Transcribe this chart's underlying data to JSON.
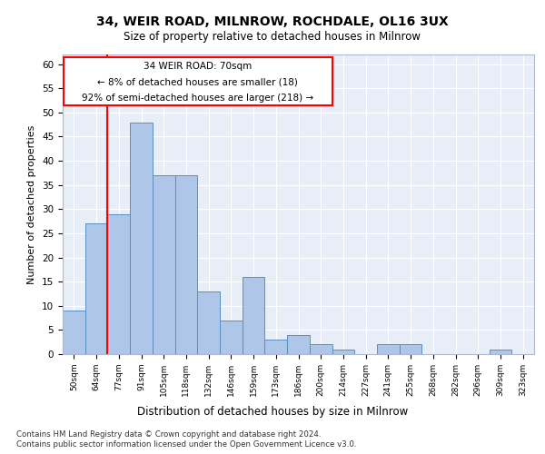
{
  "title1": "34, WEIR ROAD, MILNROW, ROCHDALE, OL16 3UX",
  "title2": "Size of property relative to detached houses in Milnrow",
  "xlabel": "Distribution of detached houses by size in Milnrow",
  "ylabel": "Number of detached properties",
  "categories": [
    "50sqm",
    "64sqm",
    "77sqm",
    "91sqm",
    "105sqm",
    "118sqm",
    "132sqm",
    "146sqm",
    "159sqm",
    "173sqm",
    "186sqm",
    "200sqm",
    "214sqm",
    "227sqm",
    "241sqm",
    "255sqm",
    "268sqm",
    "282sqm",
    "296sqm",
    "309sqm",
    "323sqm"
  ],
  "values": [
    9,
    27,
    29,
    48,
    37,
    37,
    13,
    7,
    16,
    3,
    4,
    2,
    1,
    0,
    2,
    2,
    0,
    0,
    0,
    1,
    0
  ],
  "bar_color": "#aec6e8",
  "bar_edge_color": "#5a8fc2",
  "red_line_x": 1.5,
  "annotation_title": "34 WEIR ROAD: 70sqm",
  "annotation_line1": "← 8% of detached houses are smaller (18)",
  "annotation_line2": "92% of semi-detached houses are larger (218) →",
  "ylim": [
    0,
    62
  ],
  "yticks": [
    0,
    5,
    10,
    15,
    20,
    25,
    30,
    35,
    40,
    45,
    50,
    55,
    60
  ],
  "footnote1": "Contains HM Land Registry data © Crown copyright and database right 2024.",
  "footnote2": "Contains public sector information licensed under the Open Government Licence v3.0.",
  "bg_color": "#e8eef8"
}
